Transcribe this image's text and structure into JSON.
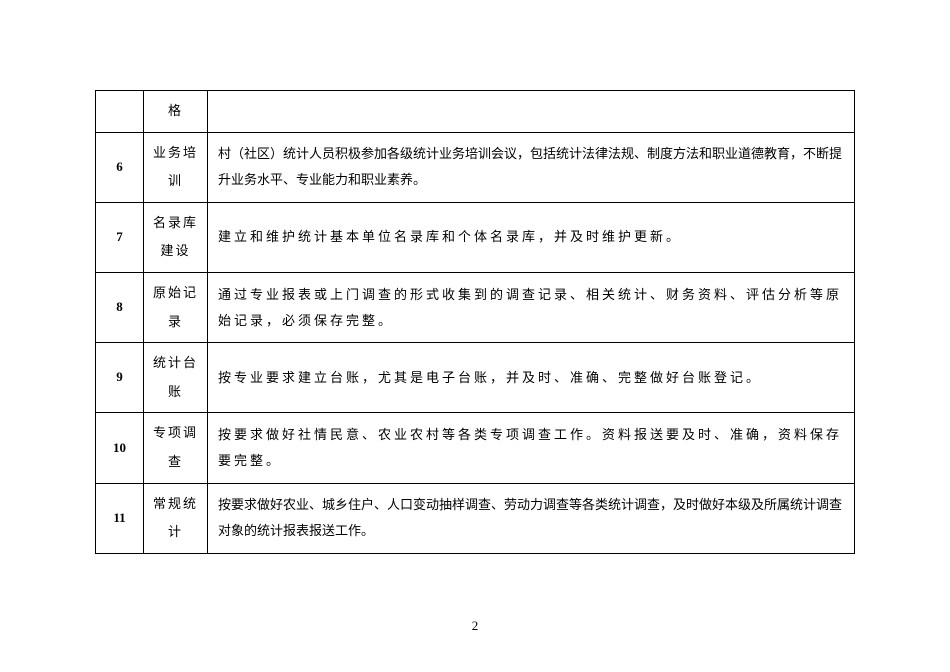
{
  "rows": [
    {
      "num": "",
      "category": "格",
      "content": "",
      "content_spacing": "normal"
    },
    {
      "num": "6",
      "category": "业务培训",
      "content": "村（社区）统计人员积极参加各级统计业务培训会议，包括统计法律法规、制度方法和职业道德教育，不断提升业务水平、专业能力和职业素养。",
      "content_spacing": "tight"
    },
    {
      "num": "7",
      "category": "名录库建设",
      "content": "建立和维护统计基本单位名录库和个体名录库，并及时维护更新。",
      "content_spacing": "spaced"
    },
    {
      "num": "8",
      "category": "原始记录",
      "content": "通过专业报表或上门调查的形式收集到的调查记录、相关统计、财务资料、评估分析等原始记录，必须保存完整。",
      "content_spacing": "spaced"
    },
    {
      "num": "9",
      "category": "统计台账",
      "content": "按专业要求建立台账，尤其是电子台账，并及时、准确、完整做好台账登记。",
      "content_spacing": "spaced"
    },
    {
      "num": "10",
      "category": "专项调查",
      "content": "按要求做好社情民意、农业农村等各类专项调查工作。资料报送要及时、准确，资料保存要完整。",
      "content_spacing": "spaced"
    },
    {
      "num": "11",
      "category": "常规统计",
      "content": "按要求做好农业、城乡住户、人口变动抽样调查、劳动力调查等各类统计调查，及时做好本级及所属统计调查对象的统计报表报送工作。",
      "content_spacing": "tight"
    }
  ],
  "page_number": "2"
}
